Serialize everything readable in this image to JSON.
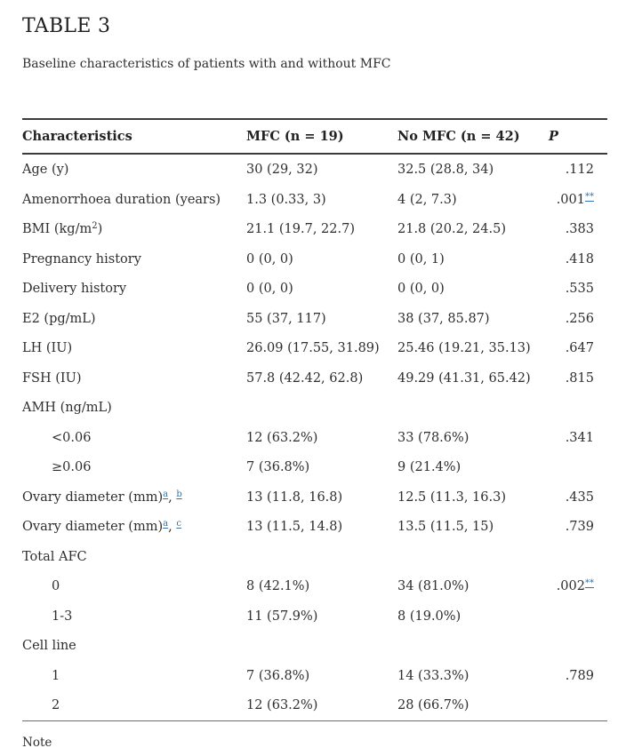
{
  "page": {
    "table_label": "TABLE 3",
    "caption": "Baseline characteristics of patients with and without MFC",
    "note_label": "Note"
  },
  "colors": {
    "text": "#2e2e2e",
    "link_blue": "#3672a7",
    "rule_dark": "#3b3b3b",
    "rule_light": "#6e6e6e"
  },
  "table": {
    "columns": [
      "Characteristics",
      "MFC (n = 19)",
      "No MFC (n = 42)",
      "P"
    ],
    "rows": [
      {
        "label_parts": [
          {
            "t": "Age (y)"
          }
        ],
        "mfc": "30 (29, 32)",
        "no_mfc": "32.5 (28.8, 34)",
        "p": ".112"
      },
      {
        "label_parts": [
          {
            "t": "Amenorrhoea duration (years)"
          }
        ],
        "mfc": "1.3 (0.33, 3)",
        "no_mfc": "4 (2, 7.3)",
        "p": ".001",
        "p_sup": "**"
      },
      {
        "label_parts": [
          {
            "t": "BMI (kg/m"
          },
          {
            "t": "2",
            "sup": true
          },
          {
            "t": ")"
          }
        ],
        "mfc": "21.1 (19.7, 22.7)",
        "no_mfc": "21.8 (20.2, 24.5)",
        "p": ".383"
      },
      {
        "label_parts": [
          {
            "t": "Pregnancy history"
          }
        ],
        "mfc": "0 (0, 0)",
        "no_mfc": "0 (0, 1)",
        "p": ".418"
      },
      {
        "label_parts": [
          {
            "t": "Delivery history"
          }
        ],
        "mfc": "0 (0, 0)",
        "no_mfc": "0 (0, 0)",
        "p": ".535"
      },
      {
        "label_parts": [
          {
            "t": "E2 (pg/mL)"
          }
        ],
        "mfc": "55 (37, 117)",
        "no_mfc": "38 (37, 85.87)",
        "p": ".256"
      },
      {
        "label_parts": [
          {
            "t": "LH (IU)"
          }
        ],
        "mfc": "26.09 (17.55, 31.89)",
        "no_mfc": "25.46 (19.21, 35.13)",
        "p": ".647"
      },
      {
        "label_parts": [
          {
            "t": "FSH (IU)"
          }
        ],
        "mfc": "57.8 (42.42, 62.8)",
        "no_mfc": "49.29 (41.31, 65.42)",
        "p": ".815"
      },
      {
        "label_parts": [
          {
            "t": "AMH (ng/mL)"
          }
        ],
        "group": true
      },
      {
        "label_parts": [
          {
            "t": "<0.06"
          }
        ],
        "indent": true,
        "mfc": "12 (63.2%)",
        "no_mfc": "33 (78.6%)",
        "p": ".341"
      },
      {
        "label_parts": [
          {
            "t": "≥0.06"
          }
        ],
        "indent": true,
        "mfc": "7 (36.8%)",
        "no_mfc": "9 (21.4%)"
      },
      {
        "label_parts": [
          {
            "t": "Ovary diameter (mm)"
          },
          {
            "t": "a",
            "sup": true,
            "link": true
          },
          {
            "t": ", "
          },
          {
            "t": "b",
            "sup": true,
            "link": true
          }
        ],
        "mfc": "13 (11.8, 16.8)",
        "no_mfc": "12.5 (11.3, 16.3)",
        "p": ".435"
      },
      {
        "label_parts": [
          {
            "t": "Ovary diameter (mm)"
          },
          {
            "t": "a",
            "sup": true,
            "link": true
          },
          {
            "t": ", "
          },
          {
            "t": "c",
            "sup": true,
            "link": true
          }
        ],
        "mfc": "13 (11.5, 14.8)",
        "no_mfc": "13.5 (11.5, 15)",
        "p": ".739"
      },
      {
        "label_parts": [
          {
            "t": "Total AFC"
          }
        ],
        "group": true
      },
      {
        "label_parts": [
          {
            "t": "0"
          }
        ],
        "indent": true,
        "mfc": "8 (42.1%)",
        "no_mfc": "34 (81.0%)",
        "p": ".002",
        "p_sup": "**"
      },
      {
        "label_parts": [
          {
            "t": "1-3"
          }
        ],
        "indent": true,
        "mfc": "11 (57.9%)",
        "no_mfc": "8 (19.0%)"
      },
      {
        "label_parts": [
          {
            "t": "Cell line"
          }
        ],
        "group": true
      },
      {
        "label_parts": [
          {
            "t": "1"
          }
        ],
        "indent": true,
        "mfc": "7 (36.8%)",
        "no_mfc": "14 (33.3%)",
        "p": ".789"
      },
      {
        "label_parts": [
          {
            "t": "2"
          }
        ],
        "indent": true,
        "mfc": "12 (63.2%)",
        "no_mfc": "28 (66.7%)"
      }
    ]
  }
}
